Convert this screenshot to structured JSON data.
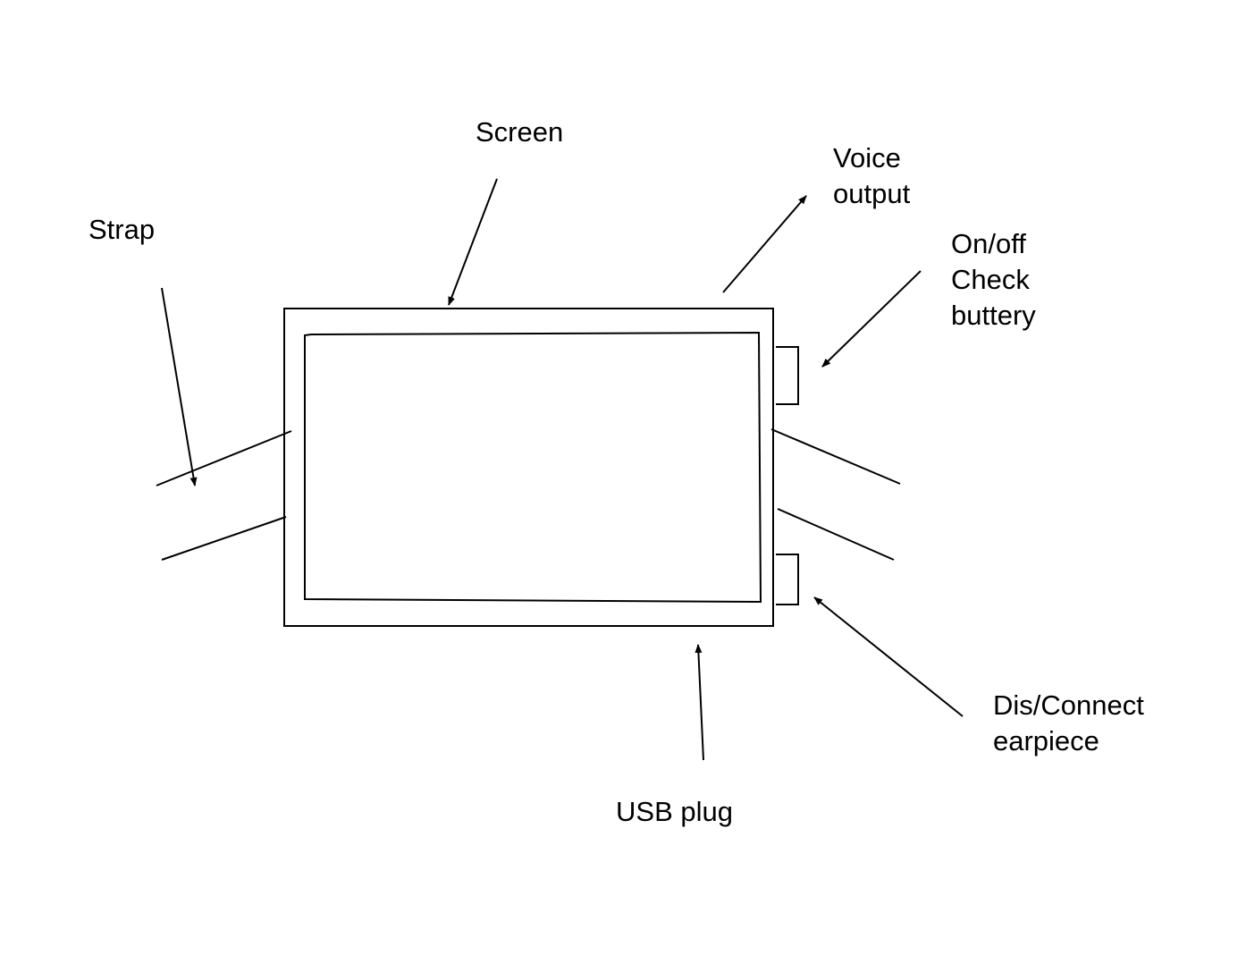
{
  "labels": {
    "screen": "Screen",
    "strap": "Strap",
    "voice_output": [
      "Voice",
      "output"
    ],
    "on_off": [
      "On/off",
      "Check",
      "buttery"
    ],
    "disconnect": [
      "Dis/Connect",
      "earpiece"
    ],
    "usb": "USB plug"
  },
  "colors": {
    "stroke": "#000000",
    "background": "#ffffff"
  }
}
